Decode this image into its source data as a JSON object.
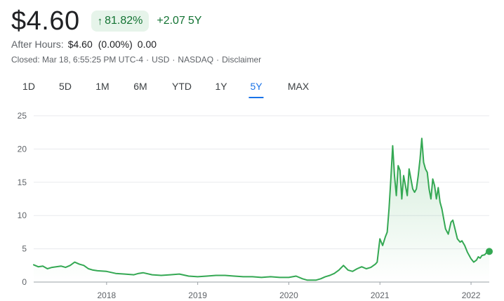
{
  "quote": {
    "price": "$4.60",
    "change_pct": "81.82%",
    "change_abs": "+2.07",
    "change_period": "5Y",
    "up_color": "#137333",
    "arrow_icon": "arrow-up-icon"
  },
  "after_hours": {
    "label": "After Hours:",
    "price": "$4.60",
    "pct": "(0.00%)",
    "abs": "0.00"
  },
  "closed_info": {
    "closed": "Closed: Mar 18, 6:55:25 PM UTC-4",
    "currency": "USD",
    "exchange": "NASDAQ",
    "disclaimer": "Disclaimer"
  },
  "ranges": {
    "items": [
      "1D",
      "5D",
      "1M",
      "6M",
      "YTD",
      "1Y",
      "5Y",
      "MAX"
    ],
    "active": "5Y",
    "active_color": "#1a73e8"
  },
  "chart_data": {
    "type": "area",
    "xlabel": "",
    "ylabel": "",
    "ylim": [
      0,
      25
    ],
    "xlim": [
      2017.2,
      2022.2
    ],
    "y_ticks": [
      0,
      5,
      10,
      15,
      20,
      25
    ],
    "x_ticks": [
      {
        "value": 2018,
        "label": "2018"
      },
      {
        "value": 2019,
        "label": "2019"
      },
      {
        "value": 2020,
        "label": "2020"
      },
      {
        "value": 2021,
        "label": "2021"
      },
      {
        "value": 2022,
        "label": "2022"
      }
    ],
    "grid": true,
    "line_color": "#34a853",
    "series": [
      {
        "x": [
          2017.2,
          2017.25,
          2017.3,
          2017.35,
          2017.4,
          2017.5,
          2017.55,
          2017.6,
          2017.65,
          2017.7,
          2017.75,
          2017.8,
          2017.85,
          2017.9,
          2018.0,
          2018.1,
          2018.2,
          2018.3,
          2018.35,
          2018.4,
          2018.5,
          2018.6,
          2018.7,
          2018.8,
          2018.9,
          2019.0,
          2019.1,
          2019.2,
          2019.3,
          2019.4,
          2019.5,
          2019.6,
          2019.7,
          2019.8,
          2019.9,
          2020.0,
          2020.08,
          2020.15,
          2020.2,
          2020.3,
          2020.35,
          2020.4,
          2020.45,
          2020.5,
          2020.55,
          2020.6,
          2020.65,
          2020.7,
          2020.75,
          2020.8,
          2020.85,
          2020.9,
          2020.95,
          2020.97,
          2021.0,
          2021.03,
          2021.06,
          2021.08,
          2021.1,
          2021.12,
          2021.14,
          2021.16,
          2021.18,
          2021.2,
          2021.22,
          2021.24,
          2021.26,
          2021.28,
          2021.3,
          2021.32,
          2021.34,
          2021.36,
          2021.38,
          2021.4,
          2021.42,
          2021.44,
          2021.46,
          2021.48,
          2021.5,
          2021.52,
          2021.54,
          2021.56,
          2021.58,
          2021.6,
          2021.62,
          2021.64,
          2021.66,
          2021.68,
          2021.7,
          2021.72,
          2021.75,
          2021.78,
          2021.8,
          2021.82,
          2021.85,
          2021.88,
          2021.9,
          2021.93,
          2021.96,
          2022.0,
          2022.03,
          2022.06,
          2022.08,
          2022.1,
          2022.12,
          2022.15,
          2022.18,
          2022.2
        ],
        "values": [
          2.6,
          2.3,
          2.4,
          2.0,
          2.2,
          2.4,
          2.2,
          2.5,
          3.0,
          2.7,
          2.5,
          2.0,
          1.8,
          1.7,
          1.6,
          1.3,
          1.2,
          1.1,
          1.3,
          1.4,
          1.1,
          1.0,
          1.1,
          1.2,
          0.9,
          0.8,
          0.9,
          1.0,
          1.0,
          0.9,
          0.8,
          0.8,
          0.7,
          0.8,
          0.7,
          0.7,
          0.9,
          0.5,
          0.3,
          0.3,
          0.5,
          0.8,
          1.0,
          1.3,
          1.8,
          2.5,
          1.8,
          1.6,
          2.0,
          2.3,
          2.0,
          2.2,
          2.7,
          3.0,
          6.5,
          5.5,
          6.8,
          7.5,
          11.0,
          15.5,
          20.5,
          16.0,
          13.0,
          17.5,
          16.8,
          12.5,
          16.0,
          14.5,
          13.0,
          17.0,
          15.5,
          14.0,
          13.5,
          14.0,
          16.0,
          18.5,
          21.6,
          18.0,
          17.0,
          16.5,
          14.0,
          12.5,
          15.5,
          14.5,
          12.5,
          14.2,
          12.0,
          11.0,
          9.5,
          8.0,
          7.2,
          9.0,
          9.3,
          8.2,
          6.5,
          6.0,
          6.2,
          5.5,
          4.5,
          3.5,
          3.0,
          3.3,
          3.8,
          3.6,
          4.0,
          4.1,
          4.6,
          4.6
        ]
      }
    ],
    "last_point": {
      "x": 2022.2,
      "y": 4.6
    }
  }
}
